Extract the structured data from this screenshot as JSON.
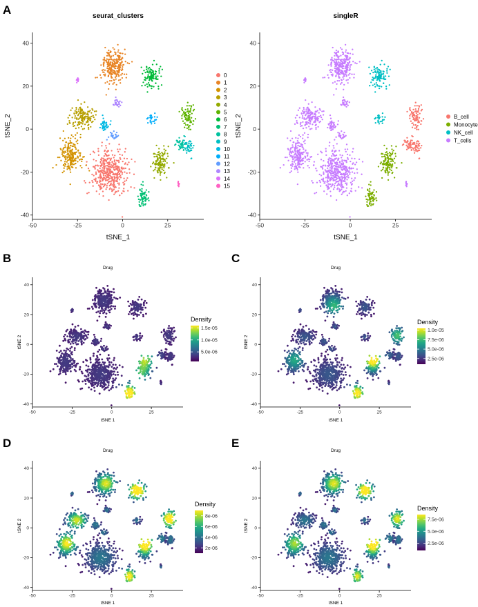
{
  "chart_data": [
    {
      "panel_label": "A",
      "type": "scatter",
      "title": "seurat_clusters",
      "xlabel": "tSNE_1",
      "ylabel": "tSNE_2",
      "xlim": [
        -50,
        45
      ],
      "ylim": [
        -42,
        45
      ],
      "xticks": [
        "-50",
        "-25",
        "0",
        "25"
      ],
      "xtick_values": [
        -50,
        -25,
        0,
        25
      ],
      "yticks": [
        "-40",
        "-20",
        "0",
        "20",
        "40"
      ],
      "ytick_values": [
        -40,
        -20,
        0,
        20,
        40
      ],
      "legend_position": "right",
      "legend": [
        {
          "label": "0",
          "color": "#F8766D"
        },
        {
          "label": "1",
          "color": "#E88526"
        },
        {
          "label": "2",
          "color": "#D39200"
        },
        {
          "label": "3",
          "color": "#B79F00"
        },
        {
          "label": "4",
          "color": "#93AA00"
        },
        {
          "label": "5",
          "color": "#5EB300"
        },
        {
          "label": "6",
          "color": "#00BA38"
        },
        {
          "label": "7",
          "color": "#00BF74"
        },
        {
          "label": "8",
          "color": "#00C19F"
        },
        {
          "label": "9",
          "color": "#00BFC4"
        },
        {
          "label": "10",
          "color": "#00B9E3"
        },
        {
          "label": "11",
          "color": "#00ADFA"
        },
        {
          "label": "12",
          "color": "#619CFF"
        },
        {
          "label": "13",
          "color": "#AE87FF"
        },
        {
          "label": "14",
          "color": "#DB72FB"
        },
        {
          "label": "15",
          "color": "#FF61C3"
        }
      ],
      "clusters": [
        {
          "group": 0,
          "x": -7,
          "y": -20,
          "sx": 9,
          "sy": 9,
          "n": 420
        },
        {
          "group": 1,
          "x": -5,
          "y": 29,
          "sx": 6,
          "sy": 7,
          "n": 260
        },
        {
          "group": 2,
          "x": -29,
          "y": -12,
          "sx": 6,
          "sy": 8,
          "n": 200
        },
        {
          "group": 3,
          "x": -22,
          "y": 5,
          "sx": 6,
          "sy": 5,
          "n": 150
        },
        {
          "group": 4,
          "x": 21,
          "y": -16,
          "sx": 4,
          "sy": 6,
          "n": 120
        },
        {
          "group": 5,
          "x": 36,
          "y": 6,
          "sx": 3.5,
          "sy": 5,
          "n": 80
        },
        {
          "group": 6,
          "x": 16,
          "y": 25,
          "sx": 4,
          "sy": 5,
          "n": 100
        },
        {
          "group": 7,
          "x": 11,
          "y": -32,
          "sx": 2.5,
          "sy": 4,
          "n": 70
        },
        {
          "group": 8,
          "x": 32,
          "y": -7,
          "sx": 2.5,
          "sy": 3,
          "n": 40
        },
        {
          "group": 9,
          "x": 37,
          "y": -8,
          "sx": 2.5,
          "sy": 4,
          "n": 40
        },
        {
          "group": 10,
          "x": -10,
          "y": 2,
          "sx": 3,
          "sy": 3,
          "n": 40
        },
        {
          "group": 11,
          "x": 16,
          "y": 5,
          "sx": 2.5,
          "sy": 2,
          "n": 30
        },
        {
          "group": 12,
          "x": -5,
          "y": -3,
          "sx": 2.5,
          "sy": 2,
          "n": 25
        },
        {
          "group": 13,
          "x": -3,
          "y": 12,
          "sx": 2,
          "sy": 2,
          "n": 30
        },
        {
          "group": 14,
          "x": -25,
          "y": 23,
          "sx": 0.8,
          "sy": 1.2,
          "n": 15
        },
        {
          "group": 15,
          "x": 31,
          "y": -26,
          "sx": 0.6,
          "sy": 1,
          "n": 8
        }
      ]
    },
    {
      "panel_label": "",
      "type": "scatter",
      "title": "singleR",
      "xlabel": "tSNE_1",
      "ylabel": "tSNE_2",
      "xlim": [
        -50,
        45
      ],
      "ylim": [
        -42,
        45
      ],
      "xticks": [
        "-50",
        "-25",
        "0",
        "25"
      ],
      "xtick_values": [
        -50,
        -25,
        0,
        25
      ],
      "yticks": [
        "-40",
        "-20",
        "0",
        "20",
        "40"
      ],
      "ytick_values": [
        -40,
        -20,
        0,
        20,
        40
      ],
      "legend_position": "right",
      "legend": [
        {
          "label": "B_cell",
          "color": "#F8766D"
        },
        {
          "label": "Monocyte",
          "color": "#7CAE00"
        },
        {
          "label": "NK_cell",
          "color": "#00BFC4"
        },
        {
          "label": "T_cells",
          "color": "#C77CFF"
        }
      ],
      "clusters": [
        {
          "group": 3,
          "x": -7,
          "y": -20,
          "sx": 9,
          "sy": 9,
          "n": 420
        },
        {
          "group": 3,
          "x": -5,
          "y": 29,
          "sx": 6,
          "sy": 7,
          "n": 260
        },
        {
          "group": 3,
          "x": -29,
          "y": -12,
          "sx": 6,
          "sy": 8,
          "n": 200
        },
        {
          "group": 3,
          "x": -22,
          "y": 5,
          "sx": 6,
          "sy": 5,
          "n": 150
        },
        {
          "group": 1,
          "x": 21,
          "y": -16,
          "sx": 4,
          "sy": 6,
          "n": 120
        },
        {
          "group": 0,
          "x": 36,
          "y": 6,
          "sx": 3.5,
          "sy": 5,
          "n": 80
        },
        {
          "group": 2,
          "x": 16,
          "y": 25,
          "sx": 4,
          "sy": 5,
          "n": 100
        },
        {
          "group": 1,
          "x": 11,
          "y": -32,
          "sx": 2.5,
          "sy": 4,
          "n": 70
        },
        {
          "group": 0,
          "x": 32,
          "y": -7,
          "sx": 2.5,
          "sy": 3,
          "n": 40
        },
        {
          "group": 0,
          "x": 37,
          "y": -8,
          "sx": 2.5,
          "sy": 4,
          "n": 40
        },
        {
          "group": 3,
          "x": -10,
          "y": 2,
          "sx": 3,
          "sy": 3,
          "n": 40
        },
        {
          "group": 2,
          "x": 16,
          "y": 5,
          "sx": 2.5,
          "sy": 2,
          "n": 30
        },
        {
          "group": 3,
          "x": -5,
          "y": -3,
          "sx": 2.5,
          "sy": 2,
          "n": 25
        },
        {
          "group": 3,
          "x": -3,
          "y": 12,
          "sx": 2,
          "sy": 2,
          "n": 30
        },
        {
          "group": 3,
          "x": -25,
          "y": 23,
          "sx": 0.8,
          "sy": 1.2,
          "n": 15
        },
        {
          "group": 3,
          "x": 31,
          "y": -26,
          "sx": 0.6,
          "sy": 1,
          "n": 8
        }
      ]
    },
    {
      "panel_label": "B",
      "type": "scatter",
      "title": "Drug",
      "xlabel": "tSNE 1",
      "ylabel": "tSNE 2",
      "xlim": [
        -50,
        45
      ],
      "ylim": [
        -42,
        45
      ],
      "xticks": [
        "-50",
        "-25",
        "0",
        "25"
      ],
      "xtick_values": [
        -50,
        -25,
        0,
        25
      ],
      "yticks": [
        "-40",
        "-20",
        "0",
        "20",
        "40"
      ],
      "ytick_values": [
        -40,
        -20,
        0,
        20,
        40
      ],
      "colorbar_title": "Density",
      "colorbar_range": [
        1e-06,
        1.6e-05
      ],
      "colorbar_labels": [
        "1.5e-05",
        "1.0e-05",
        "5.0e-06"
      ],
      "colorbar_values": [
        1.5e-05,
        1e-05,
        5e-06
      ],
      "hotspots": [
        {
          "x": 11,
          "y": -33,
          "level": 1.0
        },
        {
          "x": 21,
          "y": -10,
          "level": 0.75
        },
        {
          "x": 18,
          "y": -20,
          "level": 0.55
        }
      ]
    },
    {
      "panel_label": "C",
      "type": "scatter",
      "title": "Drug",
      "xlabel": "tSNE 1",
      "ylabel": "tSNE 2",
      "xlim": [
        -50,
        45
      ],
      "ylim": [
        -42,
        45
      ],
      "xticks": [
        "-50",
        "-25",
        "0",
        "25"
      ],
      "xtick_values": [
        -50,
        -25,
        0,
        25
      ],
      "yticks": [
        "-40",
        "-20",
        "0",
        "20",
        "40"
      ],
      "ytick_values": [
        -40,
        -20,
        0,
        20,
        40
      ],
      "colorbar_title": "Density",
      "colorbar_range": [
        1e-06,
        1.05e-05
      ],
      "colorbar_labels": [
        "1.0e-05",
        "7.5e-06",
        "5.0e-06",
        "2.5e-06"
      ],
      "colorbar_values": [
        1e-05,
        7.5e-06,
        5e-06,
        2.5e-06
      ],
      "hotspots": [
        {
          "x": 21,
          "y": -10,
          "level": 1.0
        },
        {
          "x": 11,
          "y": -33,
          "level": 0.85
        },
        {
          "x": -3,
          "y": 25,
          "level": 0.45
        },
        {
          "x": 37,
          "y": 6,
          "level": 0.45
        },
        {
          "x": -28,
          "y": -10,
          "level": 0.35
        }
      ]
    },
    {
      "panel_label": "D",
      "type": "scatter",
      "title": "Drug",
      "xlabel": "tSNE 1",
      "ylabel": "tSNE 2",
      "xlim": [
        -50,
        45
      ],
      "ylim": [
        -42,
        45
      ],
      "xticks": [
        "-50",
        "-25",
        "0",
        "25"
      ],
      "xtick_values": [
        -50,
        -25,
        0,
        25
      ],
      "yticks": [
        "-40",
        "-20",
        "0",
        "20",
        "40"
      ],
      "ytick_values": [
        -40,
        -20,
        0,
        20,
        40
      ],
      "colorbar_title": "Density",
      "colorbar_range": [
        1e-06,
        9e-06
      ],
      "colorbar_labels": [
        "8e-06",
        "6e-06",
        "4e-06",
        "2e-06"
      ],
      "colorbar_values": [
        8e-06,
        6e-06,
        4e-06,
        2e-06
      ],
      "hotspots": [
        {
          "x": 21,
          "y": -10,
          "level": 1.0
        },
        {
          "x": 16,
          "y": 25,
          "level": 0.9
        },
        {
          "x": 37,
          "y": 6,
          "level": 0.8
        },
        {
          "x": -3,
          "y": 30,
          "level": 0.6
        },
        {
          "x": -28,
          "y": -10,
          "level": 0.65
        },
        {
          "x": -22,
          "y": 5,
          "level": 0.55
        },
        {
          "x": 11,
          "y": -33,
          "level": 0.7
        }
      ]
    },
    {
      "panel_label": "E",
      "type": "scatter",
      "title": "Drug",
      "xlabel": "tSNE 1",
      "ylabel": "tSNE 2",
      "xlim": [
        -50,
        45
      ],
      "ylim": [
        -42,
        45
      ],
      "xticks": [
        "-50",
        "-25",
        "0",
        "25"
      ],
      "xtick_values": [
        -50,
        -25,
        0,
        25
      ],
      "yticks": [
        "-40",
        "-20",
        "0",
        "20",
        "40"
      ],
      "ytick_values": [
        -40,
        -20,
        0,
        20,
        40
      ],
      "colorbar_title": "Density",
      "colorbar_range": [
        1e-06,
        8.5e-06
      ],
      "colorbar_labels": [
        "7.5e-06",
        "5.0e-06",
        "2.5e-06"
      ],
      "colorbar_values": [
        7.5e-06,
        5e-06,
        2.5e-06
      ],
      "hotspots": [
        {
          "x": 21,
          "y": -10,
          "level": 1.0
        },
        {
          "x": 16,
          "y": 25,
          "level": 0.8
        },
        {
          "x": 37,
          "y": 6,
          "level": 0.6
        },
        {
          "x": -3,
          "y": 30,
          "level": 0.6
        },
        {
          "x": -28,
          "y": -10,
          "level": 0.5
        },
        {
          "x": 11,
          "y": -33,
          "level": 0.6
        }
      ]
    }
  ]
}
